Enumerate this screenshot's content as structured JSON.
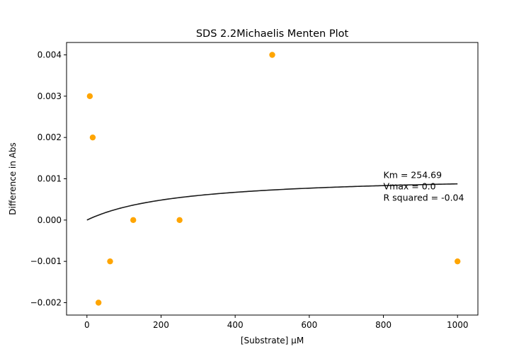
{
  "chart_data": {
    "type": "scatter",
    "title": "SDS 2.2Michaelis Menten Plot",
    "xlabel": "[Substrate] µM",
    "ylabel": "Difference in Abs",
    "xlim": [
      -55,
      1055
    ],
    "ylim": [
      -0.0023,
      0.0043
    ],
    "xticks": [
      0,
      200,
      400,
      600,
      800,
      1000
    ],
    "xtick_labels": [
      "0",
      "200",
      "400",
      "600",
      "800",
      "1000"
    ],
    "yticks": [
      -0.002,
      -0.001,
      0.0,
      0.001,
      0.002,
      0.003,
      0.004
    ],
    "ytick_labels": [
      "−0.002",
      "−0.001",
      "0.000",
      "0.001",
      "0.002",
      "0.003",
      "0.004"
    ],
    "grid": false,
    "series": [
      {
        "kind": "scatter",
        "color": "#ffa500",
        "points": [
          {
            "x": 7.8,
            "y": 0.003
          },
          {
            "x": 15.6,
            "y": 0.002
          },
          {
            "x": 31.25,
            "y": -0.002
          },
          {
            "x": 62.5,
            "y": -0.001
          },
          {
            "x": 125,
            "y": 0.0
          },
          {
            "x": 250,
            "y": 0.0
          },
          {
            "x": 500,
            "y": 0.004
          },
          {
            "x": 1000,
            "y": -0.001
          }
        ]
      },
      {
        "kind": "fit-curve",
        "color": "#1a1a1a",
        "model": "michaelis-menten",
        "Km": 254.69,
        "Vmax": 0.0011,
        "x_range": [
          0,
          1000
        ]
      }
    ],
    "annotation": {
      "lines": [
        "Km = 254.69",
        "Vmax = 0.0",
        "R squared = -0.04"
      ],
      "x": 800,
      "y": 0.00102
    }
  }
}
